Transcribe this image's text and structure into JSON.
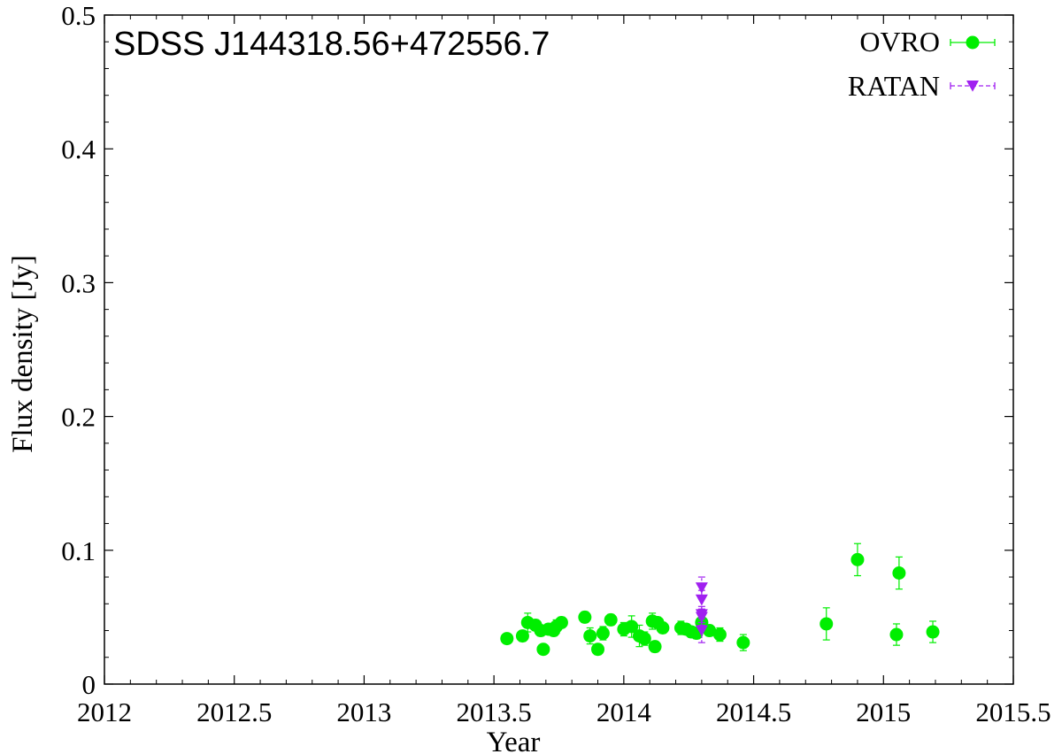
{
  "chart_data": {
    "type": "scatter",
    "title": "SDSS J144318.56+472556.7",
    "xlabel": "Year",
    "ylabel": "Flux density [Jy]",
    "xlim": [
      2012,
      2015.5
    ],
    "ylim": [
      0,
      0.5
    ],
    "x_ticks": [
      {
        "value": 2012,
        "label": "2012"
      },
      {
        "value": 2012.5,
        "label": "2012.5"
      },
      {
        "value": 2013,
        "label": "2013"
      },
      {
        "value": 2013.5,
        "label": "2013.5"
      },
      {
        "value": 2014,
        "label": "2014"
      },
      {
        "value": 2014.5,
        "label": "2014.5"
      },
      {
        "value": 2015,
        "label": "2015"
      },
      {
        "value": 2015.5,
        "label": "2015.5"
      }
    ],
    "y_ticks": [
      {
        "value": 0,
        "label": "0"
      },
      {
        "value": 0.1,
        "label": "0.1"
      },
      {
        "value": 0.2,
        "label": "0.2"
      },
      {
        "value": 0.3,
        "label": "0.3"
      },
      {
        "value": 0.4,
        "label": "0.4"
      },
      {
        "value": 0.5,
        "label": "0.5"
      }
    ],
    "grid": false,
    "legend_position": "top-right",
    "series": [
      {
        "name": "OVRO",
        "marker": "circle",
        "color": "#00ee00",
        "points": [
          {
            "x": 2013.55,
            "y": 0.034,
            "err": 0.003
          },
          {
            "x": 2013.61,
            "y": 0.036,
            "err": 0.004
          },
          {
            "x": 2013.63,
            "y": 0.046,
            "err": 0.007
          },
          {
            "x": 2013.66,
            "y": 0.044,
            "err": 0.004
          },
          {
            "x": 2013.68,
            "y": 0.04,
            "err": 0.004
          },
          {
            "x": 2013.69,
            "y": 0.026,
            "err": 0.003
          },
          {
            "x": 2013.71,
            "y": 0.041,
            "err": 0.004
          },
          {
            "x": 2013.73,
            "y": 0.04,
            "err": 0.004
          },
          {
            "x": 2013.74,
            "y": 0.043,
            "err": 0.005
          },
          {
            "x": 2013.76,
            "y": 0.046,
            "err": 0.004
          },
          {
            "x": 2013.85,
            "y": 0.05,
            "err": 0.004
          },
          {
            "x": 2013.87,
            "y": 0.036,
            "err": 0.006
          },
          {
            "x": 2013.9,
            "y": 0.026,
            "err": 0.004
          },
          {
            "x": 2013.92,
            "y": 0.038,
            "err": 0.005
          },
          {
            "x": 2013.95,
            "y": 0.048,
            "err": 0.004
          },
          {
            "x": 2014.0,
            "y": 0.041,
            "err": 0.005
          },
          {
            "x": 2014.03,
            "y": 0.043,
            "err": 0.008
          },
          {
            "x": 2014.06,
            "y": 0.036,
            "err": 0.008
          },
          {
            "x": 2014.08,
            "y": 0.034,
            "err": 0.005
          },
          {
            "x": 2014.11,
            "y": 0.047,
            "err": 0.006
          },
          {
            "x": 2014.12,
            "y": 0.028,
            "err": 0.004
          },
          {
            "x": 2014.13,
            "y": 0.046,
            "err": 0.004
          },
          {
            "x": 2014.15,
            "y": 0.042,
            "err": 0.004
          },
          {
            "x": 2014.22,
            "y": 0.042,
            "err": 0.005
          },
          {
            "x": 2014.24,
            "y": 0.041,
            "err": 0.004
          },
          {
            "x": 2014.26,
            "y": 0.039,
            "err": 0.004
          },
          {
            "x": 2014.28,
            "y": 0.038,
            "err": 0.004
          },
          {
            "x": 2014.3,
            "y": 0.046,
            "err": 0.005
          },
          {
            "x": 2014.33,
            "y": 0.04,
            "err": 0.004
          },
          {
            "x": 2014.37,
            "y": 0.037,
            "err": 0.005
          },
          {
            "x": 2014.46,
            "y": 0.031,
            "err": 0.006
          },
          {
            "x": 2014.78,
            "y": 0.045,
            "err": 0.012
          },
          {
            "x": 2014.9,
            "y": 0.093,
            "err": 0.012
          },
          {
            "x": 2015.05,
            "y": 0.037,
            "err": 0.008
          },
          {
            "x": 2015.06,
            "y": 0.083,
            "err": 0.012
          },
          {
            "x": 2015.19,
            "y": 0.039,
            "err": 0.008
          }
        ]
      },
      {
        "name": "RATAN",
        "marker": "triangle-down",
        "color": "#a020f0",
        "points": [
          {
            "x": 2014.3,
            "y": 0.072,
            "err": 0.008
          },
          {
            "x": 2014.3,
            "y": 0.063,
            "err": 0.007
          },
          {
            "x": 2014.3,
            "y": 0.052,
            "err": 0.006
          },
          {
            "x": 2014.3,
            "y": 0.05,
            "err": 0.006
          },
          {
            "x": 2014.3,
            "y": 0.04,
            "err": 0.009
          }
        ]
      }
    ]
  }
}
